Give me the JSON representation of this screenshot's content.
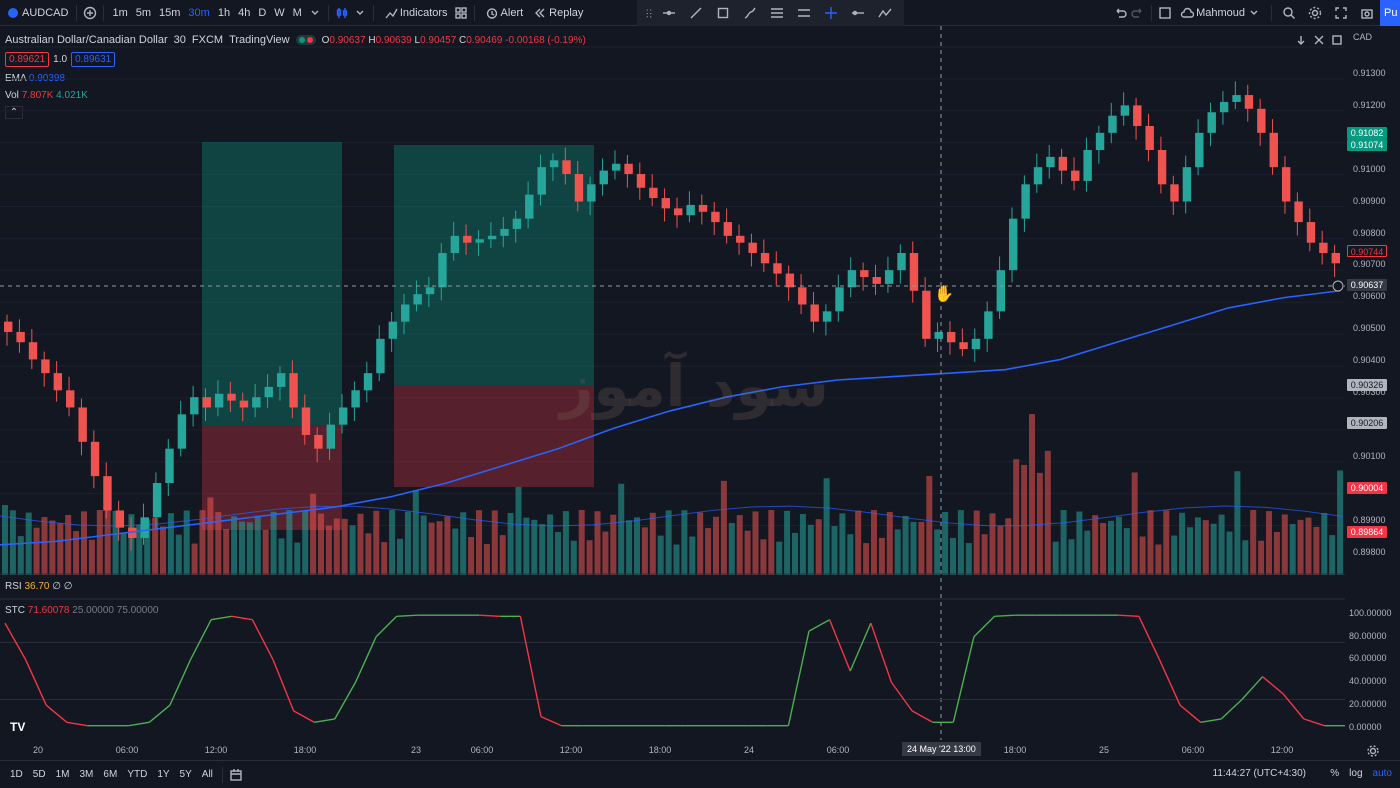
{
  "topbar": {
    "symbol": "AUDCAD",
    "timeframes": [
      "1m",
      "5m",
      "15m",
      "30m",
      "1h",
      "4h",
      "D",
      "W",
      "M"
    ],
    "active_timeframe": "30m",
    "indicators_label": "Indicators",
    "alert_label": "Alert",
    "replay_label": "Replay",
    "user_name": "Mahmoud",
    "publish_label": "Pu"
  },
  "legend": {
    "title": "Australian Dollar/Canadian Dollar",
    "interval": "30",
    "exchange": "FXCM",
    "source": "TradingView",
    "o_label": "O",
    "o_val": "0.90637",
    "h_label": "H",
    "h_val": "0.90639",
    "l_label": "L",
    "l_val": "0.90457",
    "c_label": "C",
    "c_val": "0.90469",
    "change": "-0.00168 (-0.19%)",
    "sell_price": "0.89621",
    "spread": "1.0",
    "buy_price": "0.89631"
  },
  "indicators": {
    "ema_label": "EMA",
    "ema_value": "0.90398",
    "vol_label": "Vol",
    "vol_value1": "7.807K",
    "vol_value2": "4.021K",
    "rsi_label": "RSI",
    "rsi_value": "36.70",
    "rsi_extra": "∅ ∅",
    "stc_label": "STC",
    "stc_value": "71.60078",
    "stc_p1": "25.00000",
    "stc_p2": "75.00000"
  },
  "yaxis": {
    "currency": "CAD",
    "labels": [
      "0.91300",
      "0.91200",
      "0.91100",
      "0.91000",
      "0.90900",
      "0.90800",
      "0.90700",
      "0.90600",
      "0.90500",
      "0.90400",
      "0.90300",
      "0.90200",
      "0.90100",
      "0.90000",
      "0.89900",
      "0.89800"
    ],
    "tags": [
      {
        "text": "0.91082",
        "bg": "#089981",
        "fg": "#ffffff"
      },
      {
        "text": "0.91074",
        "bg": "#089981",
        "fg": "#ffffff"
      },
      {
        "text": "0.90744",
        "bg": "#131722",
        "fg": "#f23645"
      },
      {
        "text": "0.90637",
        "bg": "#363a45",
        "fg": "#ffffff"
      },
      {
        "text": "0.90326",
        "bg": "#b2b5be",
        "fg": "#131722"
      },
      {
        "text": "0.90206",
        "bg": "#b2b5be",
        "fg": "#131722"
      },
      {
        "text": "0.90004",
        "bg": "#f23645",
        "fg": "#ffffff"
      },
      {
        "text": "0.89864",
        "bg": "#f23645",
        "fg": "#ffffff"
      }
    ],
    "stc_labels": [
      "100.00000",
      "80.00000",
      "60.00000",
      "40.00000",
      "20.00000",
      "0.00000"
    ]
  },
  "xaxis": {
    "labels": [
      "20",
      "06:00",
      "12:00",
      "18:00",
      "23",
      "06:00",
      "12:00",
      "18:00",
      "24",
      "06:00",
      "13:00",
      "18:00",
      "25",
      "06:00",
      "12:00"
    ],
    "crosshair_label": "24 May '22   13:00"
  },
  "bottombar": {
    "ranges": [
      "1D",
      "5D",
      "1M",
      "3M",
      "6M",
      "YTD",
      "1Y",
      "5Y",
      "All"
    ],
    "clock": "11:44:27 (UTC+4:30)",
    "percent_label": "%",
    "log_label": "log",
    "auto_label": "auto"
  },
  "watermark": "سود آموز",
  "colors": {
    "up": "#26a69a",
    "down": "#ef5350",
    "ema": "#2962ff",
    "bg": "#131722"
  },
  "chart_data": {
    "type": "candlestick",
    "price_range": [
      0.8978,
      0.9135
    ],
    "candles_close_path": [
      0.9052,
      0.9049,
      0.9044,
      0.904,
      0.9035,
      0.903,
      0.902,
      0.901,
      0.9,
      0.8995,
      0.8992,
      0.8998,
      0.9008,
      0.9018,
      0.9028,
      0.9033,
      0.903,
      0.9034,
      0.9032,
      0.903,
      0.9033,
      0.9036,
      0.904,
      0.903,
      0.9022,
      0.9018,
      0.9025,
      0.903,
      0.9035,
      0.904,
      0.905,
      0.9055,
      0.906,
      0.9063,
      0.9065,
      0.9075,
      0.908,
      0.9078,
      0.9079,
      0.908,
      0.9082,
      0.9085,
      0.9092,
      0.91,
      0.9102,
      0.9098,
      0.909,
      0.9095,
      0.9099,
      0.9101,
      0.9098,
      0.9094,
      0.9091,
      0.9088,
      0.9086,
      0.9089,
      0.9087,
      0.9084,
      0.908,
      0.9078,
      0.9075,
      0.9072,
      0.9069,
      0.9065,
      0.906,
      0.9055,
      0.9058,
      0.9065,
      0.907,
      0.9068,
      0.9066,
      0.907,
      0.9075,
      0.9064,
      0.905,
      0.9052,
      0.9049,
      0.9047,
      0.905,
      0.9058,
      0.907,
      0.9085,
      0.9095,
      0.91,
      0.9103,
      0.9099,
      0.9096,
      0.9105,
      0.911,
      0.9115,
      0.9118,
      0.9112,
      0.9105,
      0.9095,
      0.909,
      0.91,
      0.911,
      0.9116,
      0.9119,
      0.9121,
      0.9117,
      0.911,
      0.91,
      0.909,
      0.9084,
      0.9078,
      0.9075,
      0.9072
    ],
    "ema_path": [
      0.899,
      0.8991,
      0.8993,
      0.8995,
      0.8997,
      0.8999,
      0.9001,
      0.9004,
      0.9008,
      0.9013,
      0.9018,
      0.9024,
      0.9029,
      0.9033,
      0.9036,
      0.9038,
      0.9039,
      0.904,
      0.9041,
      0.9044,
      0.9049,
      0.9054,
      0.9059,
      0.9062,
      0.9064
    ],
    "stc_path": [
      92,
      60,
      20,
      5,
      2,
      2,
      2,
      5,
      20,
      60,
      95,
      98,
      95,
      60,
      15,
      5,
      8,
      40,
      80,
      98,
      99,
      99,
      99,
      99,
      98,
      98,
      10,
      2,
      2,
      2,
      2,
      2,
      2,
      2,
      2,
      2,
      2,
      2,
      2,
      85,
      95,
      50,
      92,
      40,
      15,
      5,
      5,
      80,
      98,
      99,
      99,
      99,
      99,
      99,
      99,
      98,
      60,
      20,
      5,
      8,
      25,
      45,
      30,
      8,
      2,
      2
    ]
  }
}
